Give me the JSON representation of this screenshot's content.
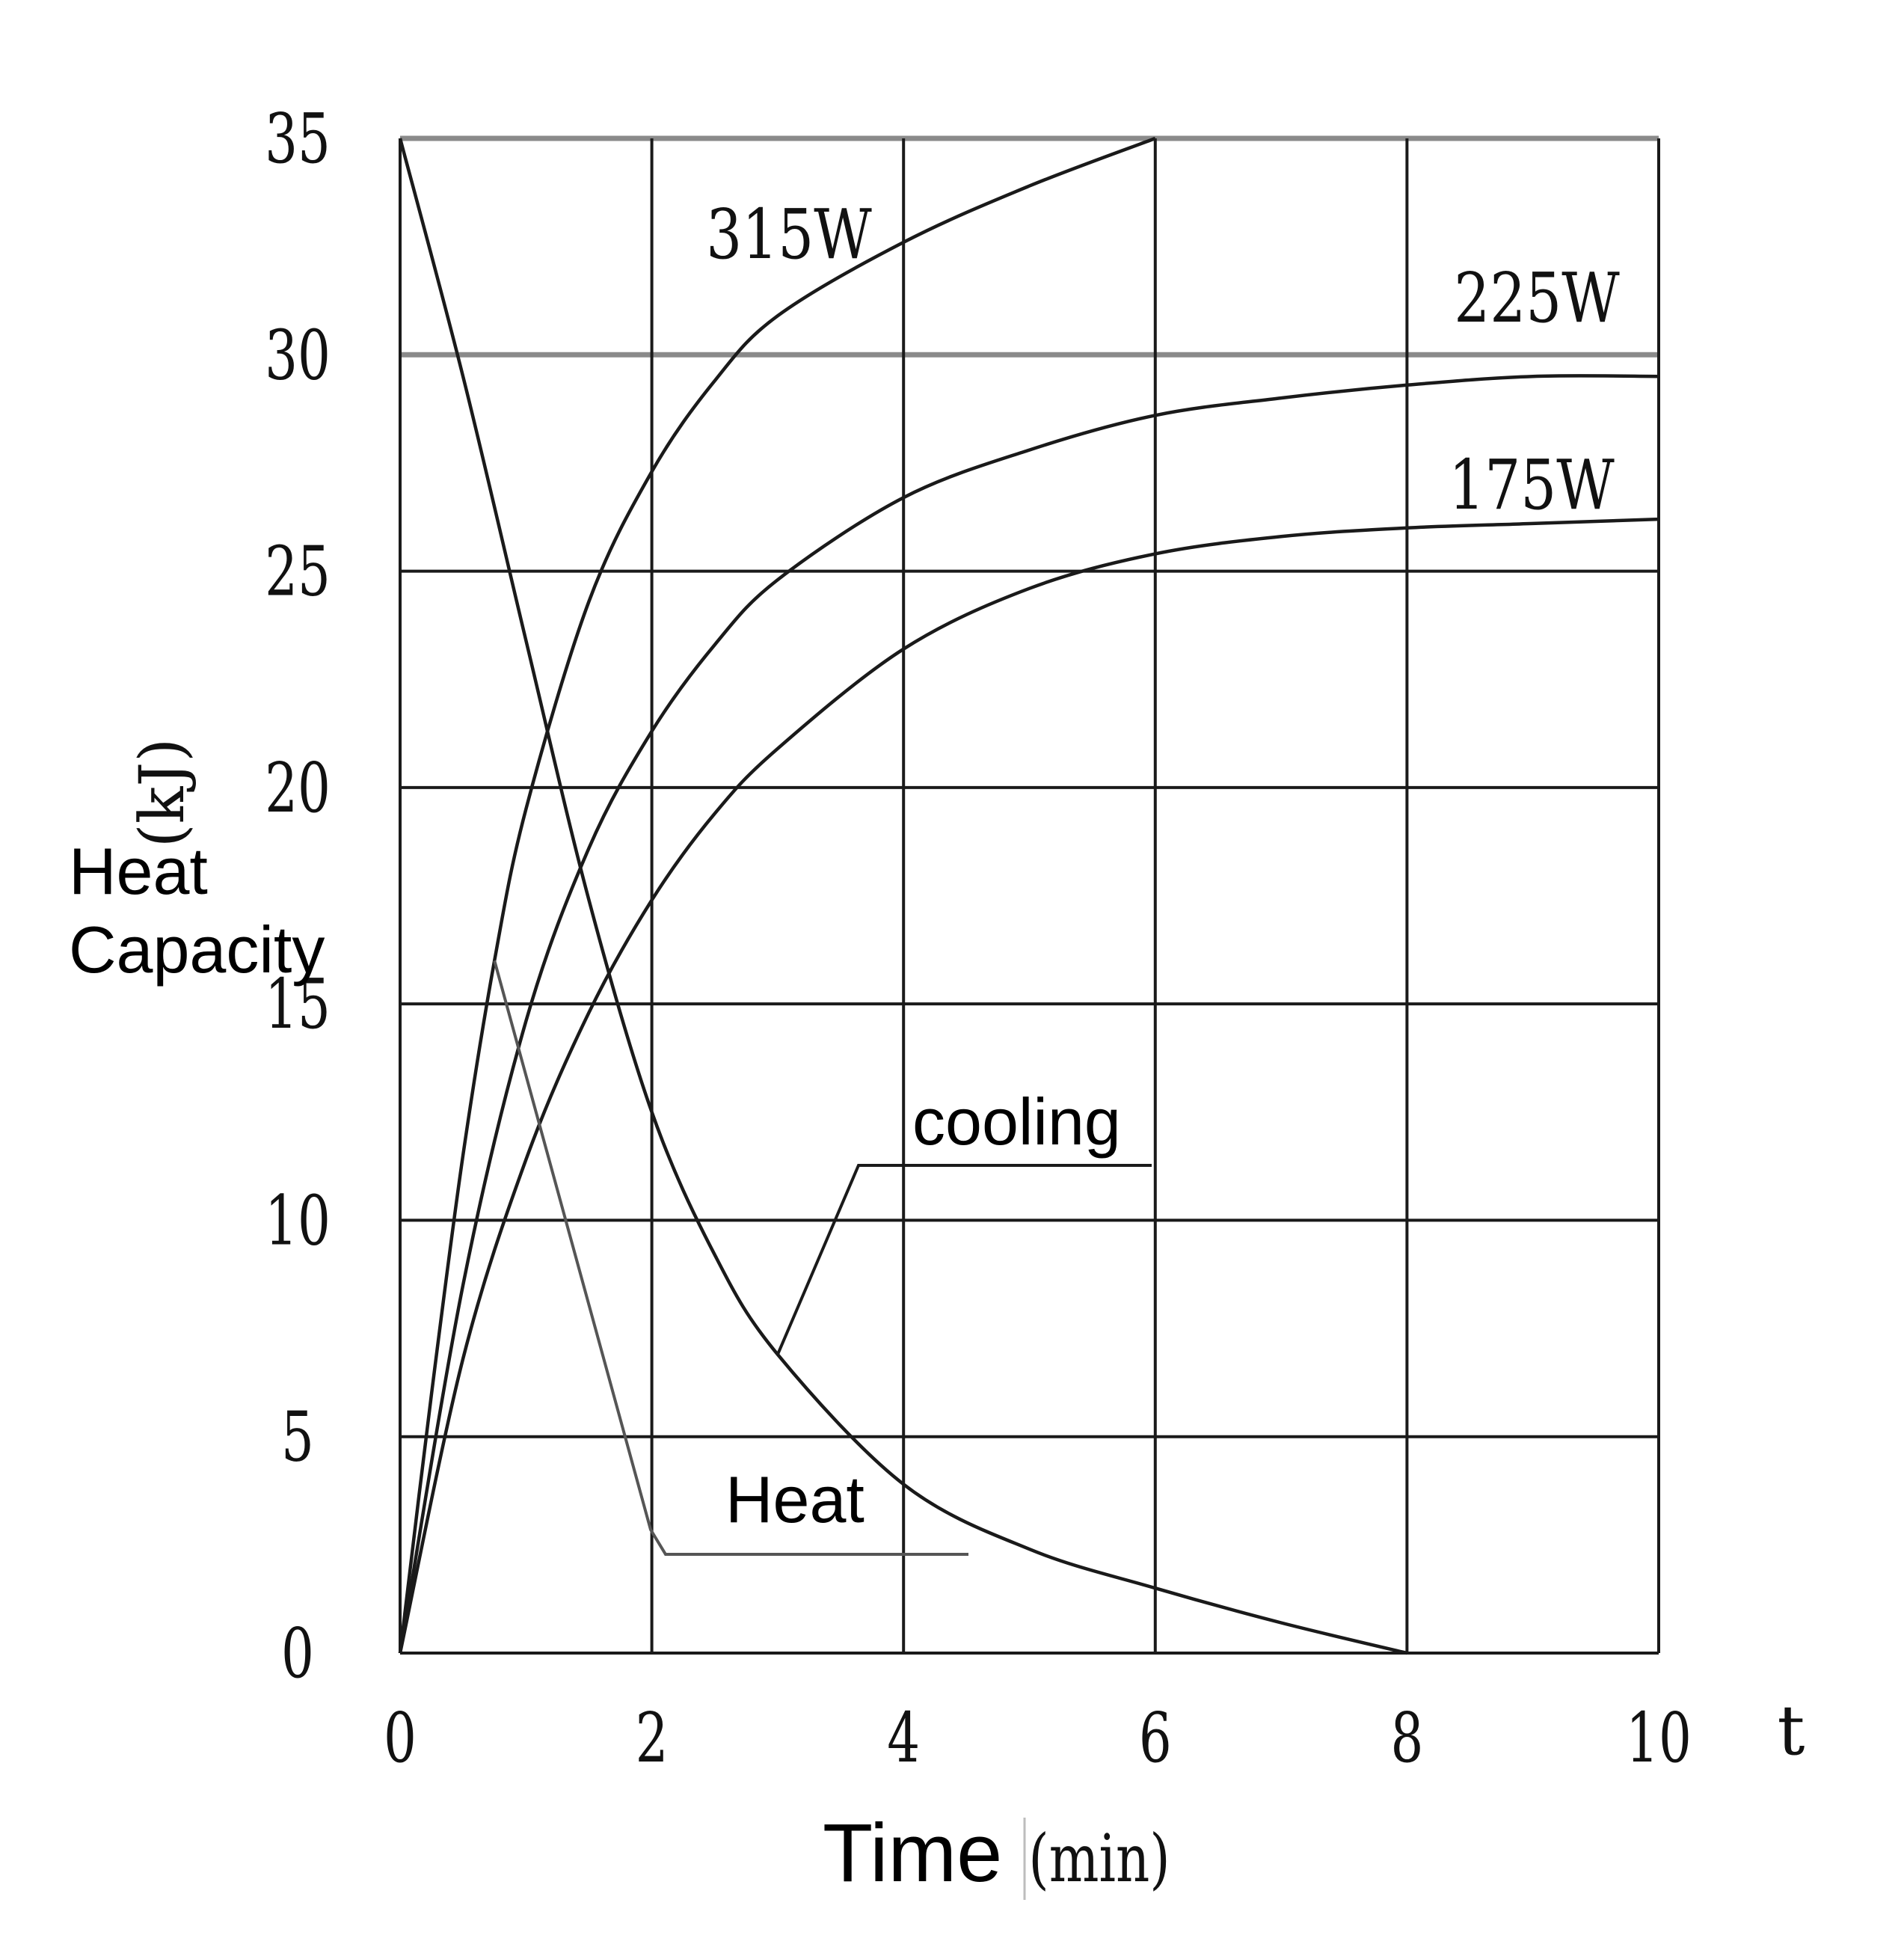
{
  "chart_data": {
    "type": "line",
    "xlabel": "Time",
    "xunit": "(min)",
    "x_axis_symbol": "t",
    "ylabel_lines": [
      "Heat",
      "Capacity"
    ],
    "yunit": "(kJ)",
    "xlim": [
      0,
      10
    ],
    "ylim": [
      0,
      35
    ],
    "xticks": [
      "0",
      "2",
      "4",
      "6",
      "8",
      "10"
    ],
    "yticks": [
      "0",
      "5",
      "10",
      "15",
      "20",
      "25",
      "30",
      "35"
    ],
    "grid": true,
    "series": [
      {
        "name": "315W",
        "group": "Heat",
        "x": [
          0,
          0.25,
          0.5,
          0.75,
          1,
          1.5,
          2,
          2.5,
          3,
          4,
          5,
          6
        ],
        "y": [
          0,
          6,
          11.5,
          16,
          19.5,
          24.3,
          27.3,
          29.4,
          30.9,
          32.6,
          33.9,
          35
        ]
      },
      {
        "name": "225W",
        "group": "Heat",
        "x": [
          0,
          0.5,
          1,
          1.5,
          2,
          2.5,
          3,
          4,
          5,
          6,
          7,
          8,
          9,
          10
        ],
        "y": [
          0,
          8.5,
          14.6,
          18.6,
          21.3,
          23.3,
          24.8,
          26.7,
          27.8,
          28.6,
          29,
          29.3,
          29.5,
          29.5
        ]
      },
      {
        "name": "175W",
        "group": "Heat",
        "x": [
          0,
          0.5,
          1,
          1.5,
          2,
          2.5,
          3,
          4,
          5,
          6,
          7,
          8,
          9,
          10
        ],
        "y": [
          0,
          6.8,
          11.4,
          14.8,
          17.4,
          19.4,
          20.9,
          23.2,
          24.6,
          25.4,
          25.8,
          26,
          26.1,
          26.2
        ]
      },
      {
        "name": "cooling",
        "x": [
          0,
          0.5,
          1,
          1.5,
          2,
          2.5,
          3,
          4,
          5,
          6,
          7,
          8
        ],
        "y": [
          35,
          29.5,
          23.4,
          17.4,
          12.5,
          9.2,
          6.9,
          3.9,
          2.4,
          1.5,
          0.7,
          0
        ]
      }
    ],
    "annotations": [
      {
        "text": "cooling",
        "points_to": "cooling",
        "at_x": 3
      },
      {
        "text": "Heat",
        "points_to": "315W",
        "at_x": 0.75
      }
    ]
  }
}
